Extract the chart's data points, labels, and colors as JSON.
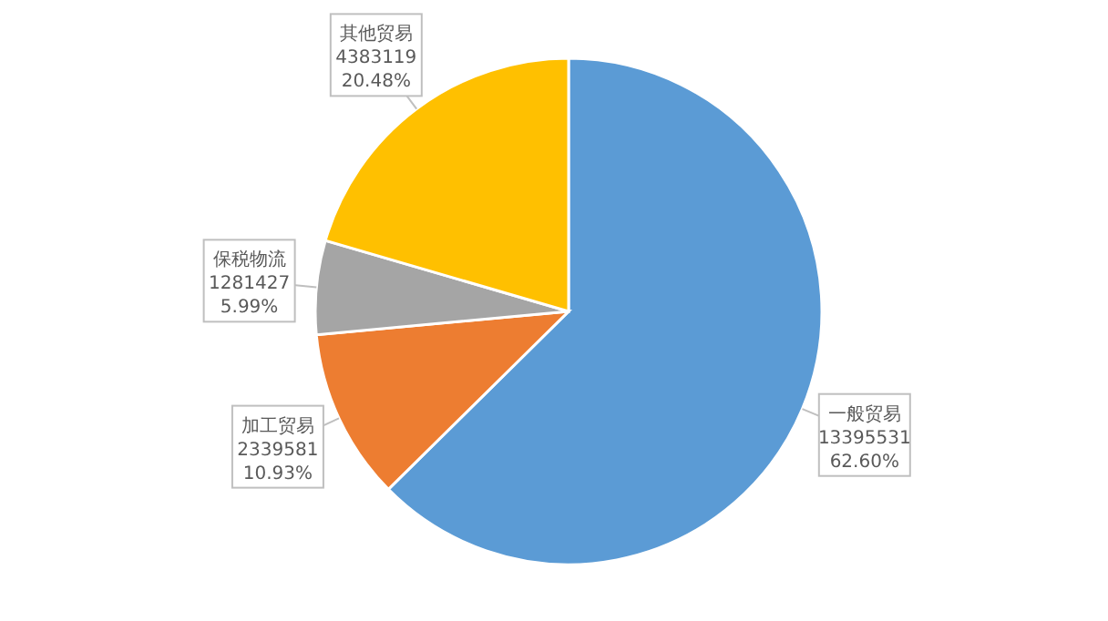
{
  "chart_data": {
    "type": "pie",
    "categories": [
      "一般贸易",
      "加工贸易",
      "保税物流",
      "其他贸易"
    ],
    "values": [
      13395531,
      2339581,
      1281427,
      4383119
    ],
    "value_labels": [
      "13395531\n62.60%",
      "2339581\n10.93%",
      "1281427\n5.99%",
      "4383119\n20.48%"
    ],
    "colors": [
      "#5b9bd5",
      "#ed7d31",
      "#a5a5a5",
      "#ffc000"
    ]
  }
}
